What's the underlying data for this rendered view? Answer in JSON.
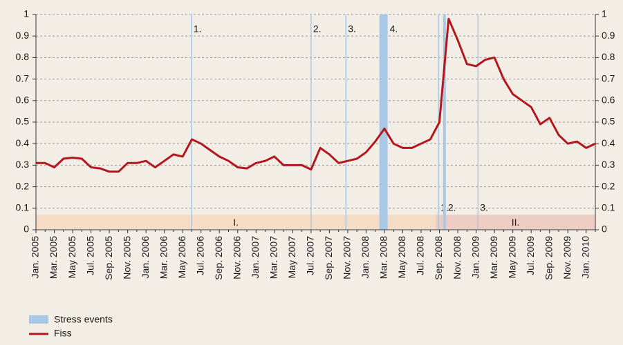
{
  "chart_data": {
    "type": "line",
    "categories": [
      "Jan. 2005",
      null,
      "Mar. 2005",
      null,
      "May 2005",
      null,
      "Jul. 2005",
      null,
      "Sep. 2005",
      null,
      "Nov. 2005",
      null,
      "Jan. 2006",
      null,
      "Mar. 2006",
      null,
      "May 2006",
      null,
      "Jul. 2006",
      null,
      "Sep. 2006",
      null,
      "Nov. 2006",
      null,
      "Jan. 2007",
      null,
      "Mar. 2007",
      null,
      "May 2007",
      null,
      "Jul. 2007",
      null,
      "Sep. 2007",
      null,
      "Nov. 2007",
      null,
      "Jan. 2008",
      null,
      "Mar. 2008",
      null,
      "May 2008",
      null,
      "Jul. 2008",
      null,
      "Sep. 2008",
      null,
      "Nov. 2008",
      null,
      "Jan. 2009",
      null,
      "Mar. 2009",
      null,
      "May 2009",
      null,
      "Jul. 2009",
      null,
      "Sep. 2009",
      null,
      "Nov. 2009",
      null,
      "Jan. 2010",
      null
    ],
    "series": [
      {
        "name": "Fiss",
        "color": "#b3161c",
        "values": [
          0.31,
          0.31,
          0.29,
          0.33,
          0.335,
          0.33,
          0.29,
          0.285,
          0.27,
          0.27,
          0.31,
          0.31,
          0.32,
          0.29,
          0.32,
          0.35,
          0.34,
          0.42,
          0.4,
          0.37,
          0.34,
          0.32,
          0.29,
          0.285,
          0.31,
          0.32,
          0.34,
          0.3,
          0.3,
          0.3,
          0.28,
          0.38,
          0.35,
          0.31,
          0.32,
          0.33,
          0.36,
          0.41,
          0.47,
          0.4,
          0.38,
          0.38,
          0.4,
          0.42,
          0.5,
          0.98,
          0.88,
          0.77,
          0.76,
          0.79,
          0.8,
          0.7,
          0.63,
          0.6,
          0.57,
          0.49,
          0.52,
          0.44,
          0.4,
          0.41,
          0.38,
          0.4
        ]
      }
    ],
    "stress_events": {
      "name": "Stress events",
      "color": "#a9c8e6",
      "events": [
        {
          "start": 16.95,
          "end": 16.95,
          "label": "1."
        },
        {
          "start": 30.0,
          "end": 30.0,
          "label": "2."
        },
        {
          "start": 33.8,
          "end": 33.8,
          "label": "3."
        },
        {
          "start": 37.45,
          "end": 38.35,
          "label": "4."
        },
        {
          "start": 43.9,
          "end": 43.9,
          "label": "1."
        },
        {
          "start": 44.4,
          "end": 44.7,
          "label": "2."
        },
        {
          "start": 48.2,
          "end": 48.2,
          "label": "3."
        }
      ]
    },
    "regimes": {
      "top": 0.07,
      "periods": [
        {
          "label": "I.",
          "start": 0,
          "end": 43.6,
          "color": "#f5dcc4"
        },
        {
          "label": "II.",
          "start": 43.6,
          "end": 61,
          "color": "#ecccc3"
        }
      ]
    },
    "ylim": [
      0,
      1
    ],
    "yticks": [
      0,
      0.1,
      0.2,
      0.3,
      0.4,
      0.5,
      0.6,
      0.7,
      0.8,
      0.9,
      1
    ],
    "y2lim": [
      0,
      1
    ],
    "y2ticks": [
      0,
      0.1,
      0.2,
      0.3,
      0.4,
      0.5,
      0.6,
      0.7,
      0.8,
      0.9,
      1
    ],
    "grid": true
  }
}
